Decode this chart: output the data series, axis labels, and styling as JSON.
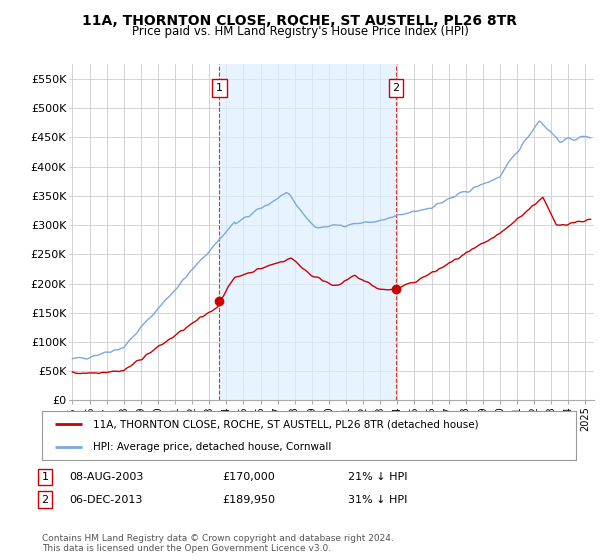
{
  "title": "11A, THORNTON CLOSE, ROCHE, ST AUSTELL, PL26 8TR",
  "subtitle": "Price paid vs. HM Land Registry's House Price Index (HPI)",
  "ylabel_ticks": [
    "£0",
    "£50K",
    "£100K",
    "£150K",
    "£200K",
    "£250K",
    "£300K",
    "£350K",
    "£400K",
    "£450K",
    "£500K",
    "£550K"
  ],
  "ytick_values": [
    0,
    50000,
    100000,
    150000,
    200000,
    250000,
    300000,
    350000,
    400000,
    450000,
    500000,
    550000
  ],
  "ylim": [
    0,
    575000
  ],
  "xlim_start": 1994.8,
  "xlim_end": 2025.5,
  "hpi_color": "#7aaadd",
  "hpi_fill_color": "#ddeeff",
  "price_color": "#cc0000",
  "transaction1_x": 2003.6,
  "transaction1_y": 170000,
  "transaction2_x": 2013.92,
  "transaction2_y": 189950,
  "legend_label1": "11A, THORNTON CLOSE, ROCHE, ST AUSTELL, PL26 8TR (detached house)",
  "legend_label2": "HPI: Average price, detached house, Cornwall",
  "table_rows": [
    {
      "num": "1",
      "date": "08-AUG-2003",
      "price": "£170,000",
      "hpi": "21% ↓ HPI"
    },
    {
      "num": "2",
      "date": "06-DEC-2013",
      "price": "£189,950",
      "hpi": "31% ↓ HPI"
    }
  ],
  "footnote": "Contains HM Land Registry data © Crown copyright and database right 2024.\nThis data is licensed under the Open Government Licence v3.0.",
  "background_color": "#ffffff",
  "grid_color": "#cccccc"
}
